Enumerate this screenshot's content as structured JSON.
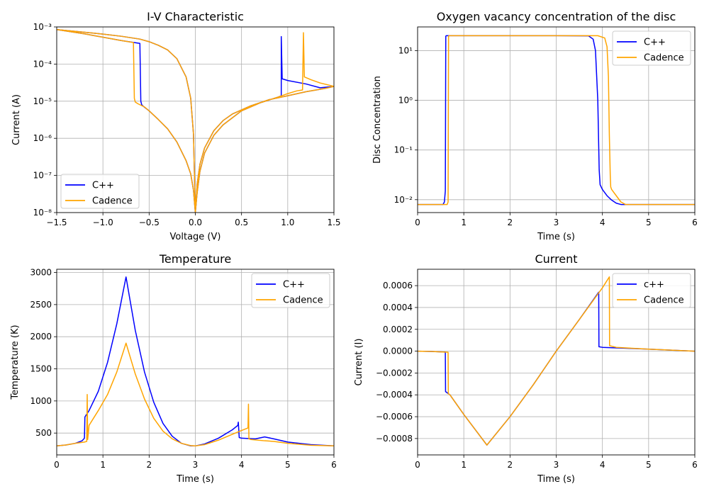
{
  "colors": {
    "cpp": "#0000ff",
    "cadence": "#ffa500",
    "grid": "#b0b0b0"
  },
  "chart_data": [
    {
      "id": "iv",
      "type": "line",
      "title": "I-V Characteristic",
      "xlabel": "Voltage (V)",
      "ylabel": "Current (A)",
      "xlim": [
        -1.5,
        1.5
      ],
      "ylim": [
        1e-08,
        0.001
      ],
      "yscale": "log",
      "grid": true,
      "legend_loc": "lower-left",
      "xticks": [
        -1.5,
        -1.0,
        -0.5,
        0.0,
        0.5,
        1.0,
        1.5
      ],
      "xtick_labels": [
        "−1.5",
        "−1.0",
        "−0.5",
        "0.0",
        "0.5",
        "1.0",
        "1.5"
      ],
      "yticks": [
        1e-08,
        1e-07,
        1e-06,
        1e-05,
        0.0001,
        0.001
      ],
      "ytick_labels": [
        "10⁻⁸",
        "10⁻⁷",
        "10⁻⁶",
        "10⁻⁵",
        "10⁻⁴",
        "10⁻³"
      ],
      "series": [
        {
          "name": "C++",
          "color": "#0000ff",
          "x": [
            -1.5,
            -1.2,
            -1.0,
            -0.8,
            -0.6,
            -0.59,
            -0.58,
            -0.56,
            -0.5,
            -0.4,
            -0.3,
            -0.2,
            -0.1,
            -0.05,
            -0.02,
            0.0,
            0.02,
            0.05,
            0.1,
            0.2,
            0.3,
            0.5,
            0.7,
            0.9,
            0.93,
            0.93,
            0.94,
            1.0,
            1.2,
            1.35,
            1.5,
            1.4,
            1.2,
            1.0,
            0.8,
            0.6,
            0.4,
            0.3,
            0.2,
            0.1,
            0.05,
            0.02,
            0.0,
            -0.02,
            -0.05,
            -0.1,
            -0.2,
            -0.3,
            -0.4,
            -0.5,
            -0.6,
            -0.8,
            -1.0,
            -1.2,
            -1.5
          ],
          "y": [
            0.00085,
            0.00065,
            0.00053,
            0.00043,
            0.00036,
            1e-05,
            8e-06,
            7.2e-06,
            5.5e-06,
            3.2e-06,
            1.8e-06,
            8e-07,
            2.5e-07,
            1.1e-07,
            4e-08,
            1e-08,
            3.5e-08,
            1.3e-07,
            4e-07,
            1.2e-06,
            2.3e-06,
            5.5e-06,
            9e-06,
            1.3e-05,
            1.4e-05,
            0.00055,
            4e-05,
            3.6e-05,
            2.9e-05,
            2.3e-05,
            2.5e-05,
            2.2e-05,
            1.8e-05,
            1.4e-05,
            1.1e-05,
            7.5e-06,
            4.5e-06,
            3e-06,
            1.6e-06,
            5.5e-07,
            2e-07,
            6e-08,
            1e-08,
            1.3e-06,
            1.2e-05,
            4.5e-05,
            0.00014,
            0.00024,
            0.00032,
            0.0004,
            0.00047,
            0.00056,
            0.00064,
            0.00072,
            0.00085
          ]
        },
        {
          "name": "Cadence",
          "color": "#ffa500",
          "x": [
            -1.5,
            -1.2,
            -1.0,
            -0.8,
            -0.67,
            -0.66,
            -0.65,
            -0.62,
            -0.55,
            -0.5,
            -0.4,
            -0.3,
            -0.2,
            -0.1,
            -0.05,
            -0.02,
            0.0,
            0.02,
            0.05,
            0.1,
            0.2,
            0.3,
            0.5,
            0.7,
            0.9,
            1.0,
            1.1,
            1.16,
            1.17,
            1.18,
            1.25,
            1.35,
            1.5,
            1.4,
            1.2,
            1.0,
            0.8,
            0.6,
            0.4,
            0.3,
            0.2,
            0.1,
            0.05,
            0.02,
            0.0,
            -0.02,
            -0.05,
            -0.1,
            -0.2,
            -0.3,
            -0.4,
            -0.5,
            -0.6,
            -0.8,
            -1.0,
            -1.2,
            -1.5
          ],
          "y": [
            0.00085,
            0.00065,
            0.00053,
            0.00043,
            0.00038,
            1.2e-05,
            9.5e-06,
            8.5e-06,
            7e-06,
            5.5e-06,
            3.2e-06,
            1.8e-06,
            8e-07,
            2.5e-07,
            1.1e-07,
            4e-08,
            1e-08,
            3.5e-08,
            1.3e-07,
            4e-07,
            1.2e-06,
            2.3e-06,
            5.5e-06,
            9e-06,
            1.3e-05,
            1.6e-05,
            1.9e-05,
            2e-05,
            0.0007,
            4.5e-05,
            3.8e-05,
            3.1e-05,
            2.5e-05,
            2.2e-05,
            1.8e-05,
            1.4e-05,
            1.1e-05,
            7.5e-06,
            4.5e-06,
            3e-06,
            1.6e-06,
            5.5e-07,
            2e-07,
            6e-08,
            1e-08,
            1.3e-06,
            1.2e-05,
            4.5e-05,
            0.00014,
            0.00024,
            0.00032,
            0.0004,
            0.00047,
            0.00056,
            0.00064,
            0.00072,
            0.00085
          ]
        }
      ]
    },
    {
      "id": "disc",
      "type": "line",
      "title": "Oxygen vacancy concentration of the disc",
      "xlabel": "Time (s)",
      "ylabel": "Disc Concentration",
      "xlim": [
        0,
        6
      ],
      "ylim": [
        0.0055,
        30
      ],
      "yscale": "log",
      "grid": true,
      "legend_loc": "upper-right",
      "xticks": [
        0,
        1,
        2,
        3,
        4,
        5,
        6
      ],
      "xtick_labels": [
        "0",
        "1",
        "2",
        "3",
        "4",
        "5",
        "6"
      ],
      "yticks": [
        0.01,
        0.1,
        1,
        10
      ],
      "ytick_labels": [
        "10⁻²",
        "10⁻¹",
        "10⁰",
        "10¹"
      ],
      "series": [
        {
          "name": "C++",
          "color": "#0000ff",
          "x": [
            0,
            0.55,
            0.58,
            0.6,
            0.61,
            0.62,
            1.0,
            2.0,
            3.0,
            3.7,
            3.8,
            3.85,
            3.9,
            3.93,
            3.95,
            4.0,
            4.1,
            4.2,
            4.3,
            4.4,
            5.0,
            6.0
          ],
          "y": [
            0.008,
            0.008,
            0.009,
            0.015,
            19.5,
            20,
            20,
            20,
            20,
            19.8,
            17.0,
            10.0,
            1.0,
            0.04,
            0.02,
            0.016,
            0.012,
            0.0098,
            0.0085,
            0.008,
            0.008,
            0.008
          ]
        },
        {
          "name": "Cadence",
          "color": "#ffa500",
          "x": [
            0,
            0.64,
            0.66,
            0.67,
            0.68,
            1.0,
            2.0,
            3.0,
            3.9,
            4.05,
            4.1,
            4.13,
            4.15,
            4.17,
            4.18,
            4.2,
            4.3,
            4.4,
            4.5,
            5.0,
            6.0
          ],
          "y": [
            0.008,
            0.008,
            0.009,
            19.5,
            20,
            20,
            20,
            20,
            20,
            18.0,
            12.0,
            3.0,
            0.2,
            0.03,
            0.018,
            0.016,
            0.012,
            0.009,
            0.008,
            0.008,
            0.008
          ]
        }
      ]
    },
    {
      "id": "temp",
      "type": "line",
      "title": "Temperature",
      "xlabel": "Time (s)",
      "ylabel": "Temperature (K)",
      "xlim": [
        0,
        6
      ],
      "ylim": [
        160,
        3050
      ],
      "yscale": "linear",
      "grid": true,
      "legend_loc": "upper-right",
      "xticks": [
        0,
        1,
        2,
        3,
        4,
        5,
        6
      ],
      "xtick_labels": [
        "0",
        "1",
        "2",
        "3",
        "4",
        "5",
        "6"
      ],
      "yticks": [
        500,
        1000,
        1500,
        2000,
        2500,
        3000
      ],
      "ytick_labels": [
        "500",
        "1000",
        "1500",
        "2000",
        "2500",
        "3000"
      ],
      "series": [
        {
          "name": "C++",
          "color": "#0000ff",
          "x": [
            0,
            0.2,
            0.4,
            0.55,
            0.6,
            0.61,
            0.7,
            0.9,
            1.1,
            1.3,
            1.5,
            1.7,
            1.9,
            2.1,
            2.3,
            2.5,
            2.7,
            2.9,
            3.0,
            3.2,
            3.5,
            3.8,
            3.92,
            3.93,
            3.95,
            4.0,
            4.3,
            4.5,
            4.7,
            5.0,
            5.5,
            6.0
          ],
          "y": [
            300,
            315,
            340,
            380,
            420,
            750,
            850,
            1150,
            1600,
            2200,
            2930,
            2100,
            1450,
            980,
            650,
            450,
            340,
            300,
            300,
            330,
            420,
            550,
            620,
            670,
            430,
            420,
            410,
            440,
            410,
            360,
            320,
            300
          ]
        },
        {
          "name": "Cadence",
          "color": "#ffa500",
          "x": [
            0,
            0.2,
            0.4,
            0.6,
            0.65,
            0.66,
            0.67,
            0.7,
            0.9,
            1.1,
            1.3,
            1.5,
            1.7,
            1.9,
            2.1,
            2.3,
            2.5,
            2.7,
            2.9,
            3.0,
            3.2,
            3.5,
            3.8,
            4.0,
            4.14,
            4.15,
            4.16,
            4.2,
            4.5,
            4.7,
            5.0,
            5.5,
            6.0
          ],
          "y": [
            300,
            315,
            340,
            360,
            370,
            1100,
            400,
            620,
            850,
            1100,
            1450,
            1900,
            1420,
            1030,
            730,
            530,
            410,
            340,
            305,
            300,
            320,
            390,
            480,
            540,
            580,
            950,
            410,
            400,
            380,
            370,
            340,
            310,
            300
          ]
        }
      ]
    },
    {
      "id": "current",
      "type": "line",
      "title": "Current",
      "xlabel": "Time (s)",
      "ylabel": "Current (I)",
      "xlim": [
        0,
        6
      ],
      "ylim": [
        -0.00095,
        0.00075
      ],
      "yscale": "linear",
      "grid": true,
      "legend_loc": "upper-right",
      "xticks": [
        0,
        1,
        2,
        3,
        4,
        5,
        6
      ],
      "xtick_labels": [
        "0",
        "1",
        "2",
        "3",
        "4",
        "5",
        "6"
      ],
      "yticks": [
        -0.0008,
        -0.0006,
        -0.0004,
        -0.0002,
        0.0,
        0.0002,
        0.0004,
        0.0006
      ],
      "ytick_labels": [
        "−0.0008",
        "−0.0006",
        "−0.0004",
        "−0.0002",
        "0.0000",
        "0.0002",
        "0.0004",
        "0.0006"
      ],
      "series": [
        {
          "name": "c++",
          "color": "#0000ff",
          "x": [
            0,
            0.3,
            0.6,
            0.605,
            0.7,
            1.0,
            1.5,
            2.0,
            2.5,
            3.0,
            3.5,
            3.92,
            3.925,
            4.0,
            5.0,
            6.0
          ],
          "y": [
            0,
            -3e-06,
            -8e-06,
            -0.00037,
            -0.0004,
            -0.00058,
            -0.00086,
            -0.0006,
            -0.00031,
            0.0,
            0.00029,
            0.00054,
            4e-05,
            3.5e-05,
            1.8e-05,
            0.0
          ]
        },
        {
          "name": "Cadence",
          "color": "#ffa500",
          "x": [
            0,
            0.3,
            0.66,
            0.665,
            0.7,
            1.0,
            1.5,
            2.0,
            2.5,
            3.0,
            3.5,
            4.0,
            4.15,
            4.155,
            4.3,
            5.0,
            6.0
          ],
          "y": [
            0,
            -3e-06,
            -1e-05,
            -0.00039,
            -0.0004,
            -0.00058,
            -0.00086,
            -0.0006,
            -0.00031,
            0.0,
            0.00029,
            0.00058,
            0.00068,
            5e-05,
            3.5e-05,
            1.8e-05,
            0.0
          ]
        }
      ]
    }
  ]
}
